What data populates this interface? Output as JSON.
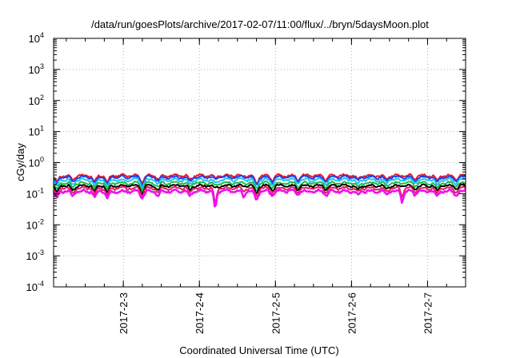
{
  "chart_data": {
    "type": "line",
    "title": "/data/run/goesPlots/archive/2017-02-07/11:00/flux/../bryn/5daysMoon.plot",
    "xlabel": "Coordinated Universal Time (UTC)",
    "ylabel": "cGy/day",
    "yscale": "log",
    "ylim": [
      0.0001,
      10000
    ],
    "xlim": [
      "2017-02-02T02:00",
      "2017-02-07T12:00"
    ],
    "grid": true,
    "legend": "none",
    "x_ticks": [
      {
        "x": "2017-02-03T00:00",
        "label": "2017-2-3"
      },
      {
        "x": "2017-02-04T00:00",
        "label": "2017-2-4"
      },
      {
        "x": "2017-02-05T00:00",
        "label": "2017-2-5"
      },
      {
        "x": "2017-02-06T00:00",
        "label": "2017-2-6"
      },
      {
        "x": "2017-02-07T00:00",
        "label": "2017-2-7"
      }
    ],
    "y_ticks": [
      {
        "value": 0.0001,
        "base": "10",
        "exp": "-4"
      },
      {
        "value": 0.001,
        "base": "10",
        "exp": "-3"
      },
      {
        "value": 0.01,
        "base": "10",
        "exp": "-2"
      },
      {
        "value": 0.1,
        "base": "10",
        "exp": "-1"
      },
      {
        "value": 1,
        "base": "10",
        "exp": "0"
      },
      {
        "value": 10,
        "base": "10",
        "exp": "1"
      },
      {
        "value": 100,
        "base": "10",
        "exp": "2"
      },
      {
        "value": 1000,
        "base": "10",
        "exp": "3"
      },
      {
        "value": 10000,
        "base": "10",
        "exp": "4"
      }
    ],
    "dips": [
      {
        "x": "2017-02-02T03:00",
        "depth": 0.45
      },
      {
        "x": "2017-02-02T08:00",
        "depth": 0.35
      },
      {
        "x": "2017-02-02T15:00",
        "depth": 0.4
      },
      {
        "x": "2017-02-02T19:00",
        "depth": 0.45
      },
      {
        "x": "2017-02-03T06:00",
        "depth": 0.42
      },
      {
        "x": "2017-02-03T11:00",
        "depth": 0.28
      },
      {
        "x": "2017-02-03T21:00",
        "depth": 0.3
      },
      {
        "x": "2017-02-04T05:00",
        "depth": 0.22
      },
      {
        "x": "2017-02-04T18:00",
        "depth": 0.5
      },
      {
        "x": "2017-02-04T23:00",
        "depth": 0.3
      },
      {
        "x": "2017-02-05T07:00",
        "depth": 0.25
      },
      {
        "x": "2017-02-05T16:00",
        "depth": 0.28
      },
      {
        "x": "2017-02-06T02:00",
        "depth": 0.3
      },
      {
        "x": "2017-02-06T11:00",
        "depth": 0.25
      },
      {
        "x": "2017-02-06T20:00",
        "depth": 0.22
      },
      {
        "x": "2017-02-07T03:00",
        "depth": 0.35
      },
      {
        "x": "2017-02-07T09:00",
        "depth": 0.25
      }
    ],
    "deep_dips": [
      {
        "x": "2017-02-04T05:00",
        "y": 0.024
      },
      {
        "x": "2017-02-04T14:00",
        "y": 0.07
      },
      {
        "x": "2017-02-06T16:00",
        "y": 0.045
      }
    ],
    "series": [
      {
        "color": "#e8182a",
        "base": 0.38
      },
      {
        "color": "#1f3ff0",
        "base": 0.34
      },
      {
        "color": "#18c8f0",
        "base": 0.28
      },
      {
        "color": "#22b84a",
        "base": 0.22
      },
      {
        "color": "#000000",
        "base": 0.18
      },
      {
        "color": "#e0205a",
        "base": 0.15
      },
      {
        "color": "#ee11ee",
        "base": 0.12
      }
    ]
  }
}
